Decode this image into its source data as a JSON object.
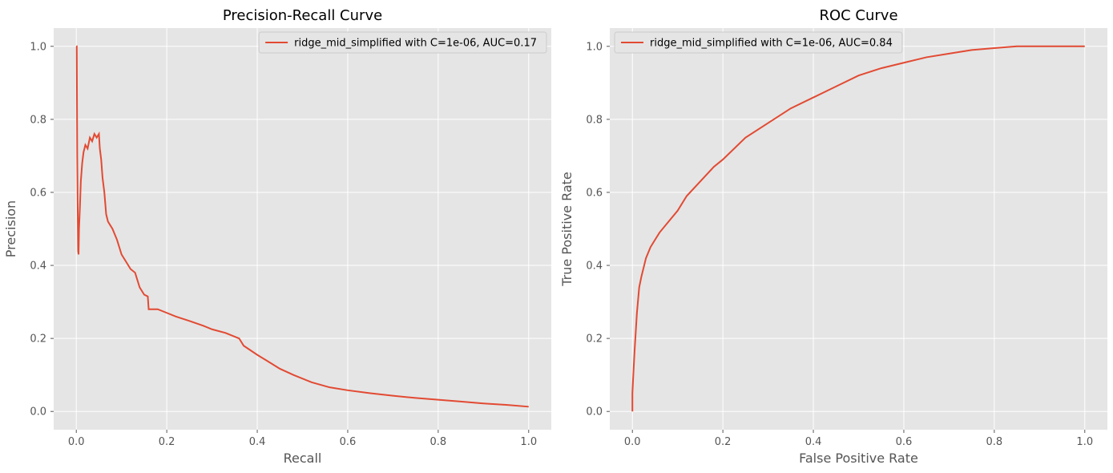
{
  "colors": {
    "plot_bg": "#E5E5E5",
    "grid": "#FFFFFF",
    "line": "#E24A33",
    "text": "#000000",
    "axis_text": "#555555"
  },
  "chart_data": [
    {
      "type": "line",
      "title": "Precision-Recall Curve",
      "xlabel": "Recall",
      "ylabel": "Precision",
      "xlim": [
        -0.05,
        1.05
      ],
      "ylim": [
        -0.05,
        1.05
      ],
      "xticks": [
        "0.0",
        "0.2",
        "0.4",
        "0.6",
        "0.8",
        "1.0"
      ],
      "yticks": [
        "0.0",
        "0.2",
        "0.4",
        "0.6",
        "0.8",
        "1.0"
      ],
      "grid": true,
      "legend_position": "top-right",
      "series": [
        {
          "name": "ridge_mid_simplified with C=1e-06, AUC=0.17",
          "x": [
            0.0,
            0.001,
            0.002,
            0.003,
            0.004,
            0.005,
            0.006,
            0.008,
            0.01,
            0.013,
            0.016,
            0.02,
            0.025,
            0.03,
            0.035,
            0.04,
            0.045,
            0.05,
            0.052,
            0.055,
            0.058,
            0.062,
            0.066,
            0.07,
            0.075,
            0.08,
            0.09,
            0.1,
            0.11,
            0.12,
            0.13,
            0.14,
            0.15,
            0.158,
            0.16,
            0.18,
            0.2,
            0.22,
            0.25,
            0.28,
            0.3,
            0.33,
            0.36,
            0.37,
            0.4,
            0.42,
            0.45,
            0.48,
            0.52,
            0.56,
            0.6,
            0.65,
            0.7,
            0.75,
            0.8,
            0.85,
            0.9,
            0.95,
            1.0
          ],
          "y": [
            1.0,
            1.0,
            0.7,
            0.57,
            0.44,
            0.43,
            0.5,
            0.56,
            0.63,
            0.68,
            0.71,
            0.73,
            0.72,
            0.75,
            0.74,
            0.76,
            0.75,
            0.76,
            0.72,
            0.69,
            0.64,
            0.6,
            0.54,
            0.52,
            0.51,
            0.5,
            0.47,
            0.43,
            0.41,
            0.39,
            0.38,
            0.34,
            0.32,
            0.315,
            0.28,
            0.28,
            0.27,
            0.26,
            0.248,
            0.235,
            0.225,
            0.215,
            0.2,
            0.18,
            0.155,
            0.14,
            0.117,
            0.1,
            0.08,
            0.066,
            0.058,
            0.05,
            0.043,
            0.037,
            0.032,
            0.027,
            0.022,
            0.018,
            0.013
          ]
        }
      ]
    },
    {
      "type": "line",
      "title": "ROC Curve",
      "xlabel": "False Positive Rate",
      "ylabel": "True Positive Rate",
      "xlim": [
        -0.05,
        1.05
      ],
      "ylim": [
        -0.05,
        1.05
      ],
      "xticks": [
        "0.0",
        "0.2",
        "0.4",
        "0.6",
        "0.8",
        "1.0"
      ],
      "yticks": [
        "0.0",
        "0.2",
        "0.4",
        "0.6",
        "0.8",
        "1.0"
      ],
      "grid": true,
      "legend_position": "top-left",
      "series": [
        {
          "name": "ridge_mid_simplified with C=1e-06, AUC=0.84",
          "x": [
            0.0,
            0.0,
            0.002,
            0.005,
            0.01,
            0.015,
            0.02,
            0.03,
            0.04,
            0.05,
            0.06,
            0.08,
            0.1,
            0.12,
            0.15,
            0.18,
            0.2,
            0.25,
            0.3,
            0.35,
            0.4,
            0.45,
            0.5,
            0.55,
            0.6,
            0.65,
            0.7,
            0.75,
            0.8,
            0.85,
            0.9,
            0.95,
            1.0
          ],
          "y": [
            0.0,
            0.05,
            0.1,
            0.17,
            0.27,
            0.34,
            0.37,
            0.42,
            0.45,
            0.47,
            0.49,
            0.52,
            0.55,
            0.59,
            0.63,
            0.67,
            0.69,
            0.75,
            0.79,
            0.83,
            0.86,
            0.89,
            0.92,
            0.94,
            0.955,
            0.97,
            0.98,
            0.99,
            0.995,
            1.0,
            1.0,
            1.0,
            1.0
          ]
        }
      ]
    }
  ]
}
